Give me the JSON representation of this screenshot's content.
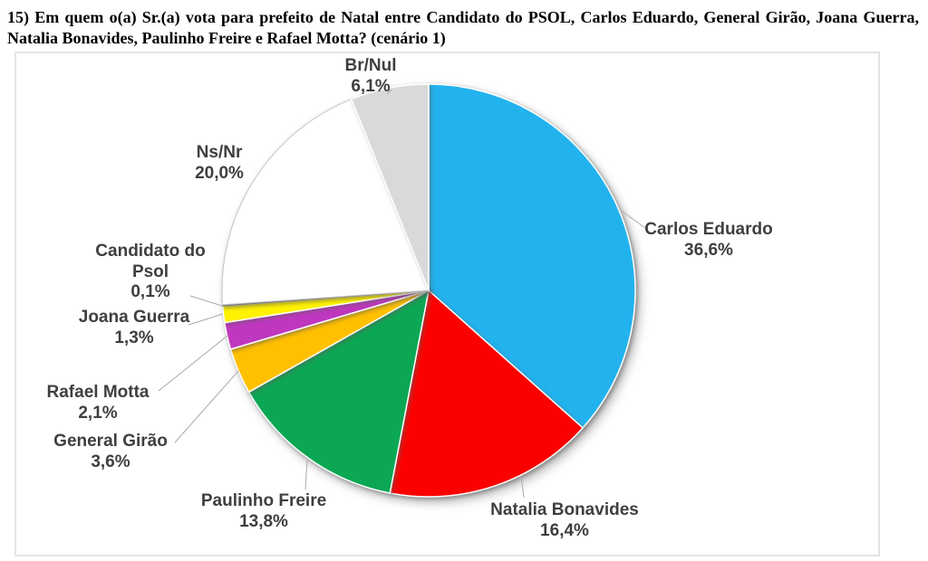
{
  "page": {
    "title": "15) Em quem o(a) Sr.(a) vota para prefeito de Natal entre Candidato do PSOL, Carlos Eduardo, General Girão, Joana Guerra, Natalia Bonavides, Paulinho Freire e Rafael Motta? (cenário 1)"
  },
  "chart_data": {
    "type": "pie",
    "title": "15) Em quem o(a) Sr.(a) vota para prefeito de Natal entre Candidato do PSOL, Carlos Eduardo, General Girão, Joana Guerra, Natalia Bonavides, Paulinho Freire e Rafael Motta? (cenário 1)",
    "start_angle_deg": 0,
    "direction": "clockwise",
    "legend_position": "none",
    "label_style": "outside-with-leader-lines",
    "value_format": "pt-BR percent, comma decimal",
    "total": 100.0,
    "slices": [
      {
        "label": "Carlos Eduardo",
        "value": 36.6,
        "pct": "36,6%",
        "color": "#22b3ef"
      },
      {
        "label": "Natalia Bonavides",
        "value": 16.4,
        "pct": "16,4%",
        "color": "#fc0000"
      },
      {
        "label": "Paulinho Freire",
        "value": 13.8,
        "pct": "13,8%",
        "color": "#0ca754"
      },
      {
        "label": "General Girão",
        "value": 3.6,
        "pct": "3,6%",
        "color": "#ffc000"
      },
      {
        "label": "Rafael Motta",
        "value": 2.1,
        "pct": "2,1%",
        "color": "#bf37bf"
      },
      {
        "label": "Joana Guerra",
        "value": 1.3,
        "pct": "1,3%",
        "color": "#fff100"
      },
      {
        "label": "Candidato do Psol",
        "value": 0.1,
        "pct": "0,1%",
        "color": "#8f8f8f"
      },
      {
        "label": "Ns/Nr",
        "value": 20.0,
        "pct": "20,0%",
        "color": "#ffffff"
      },
      {
        "label": "Br/Nul",
        "value": 6.1,
        "pct": "6,1%",
        "color": "#d9d9d9"
      }
    ]
  }
}
